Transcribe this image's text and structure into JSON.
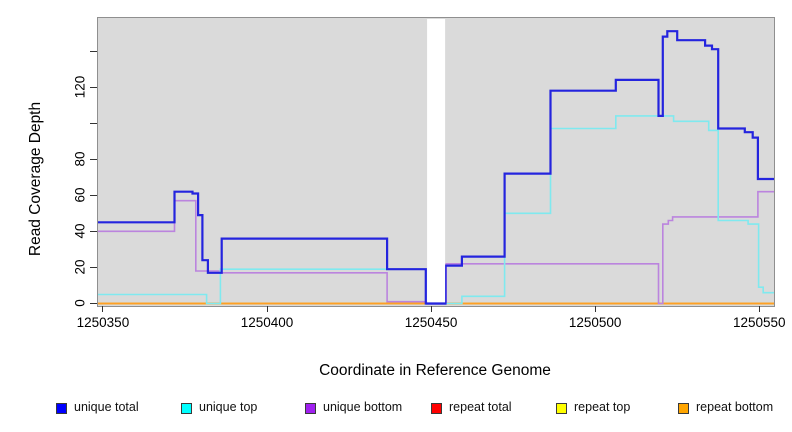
{
  "chart_data": {
    "type": "line",
    "subtype": "step",
    "title": "",
    "xlabel": "Coordinate in Reference Genome",
    "ylabel": "Read Coverage Depth",
    "grid": false,
    "plot_bg": "#DADADA",
    "x_domain": [
      1250348.5,
      1250554.5
    ],
    "y_domain": [
      -1.4,
      158.3
    ],
    "x_ticks": [
      {
        "value": 1250350,
        "label": "1250350"
      },
      {
        "value": 1250400,
        "label": "1250400"
      },
      {
        "value": 1250450,
        "label": "1250450"
      },
      {
        "value": 1250500,
        "label": "1250500"
      },
      {
        "value": 1250550,
        "label": "1250550"
      }
    ],
    "y_ticks": [
      {
        "value": 0,
        "label": "0"
      },
      {
        "value": 20,
        "label": "20"
      },
      {
        "value": 40,
        "label": "40"
      },
      {
        "value": 60,
        "label": "60"
      },
      {
        "value": 80,
        "label": "80"
      },
      {
        "value": 100,
        "label": ""
      },
      {
        "value": 120,
        "label": "120"
      },
      {
        "value": 140,
        "label": ""
      }
    ],
    "gap_band": {
      "x1": 1250448.8,
      "x2": 1250454.3,
      "color": "#FFFFFF",
      "crossing_series": "unique total",
      "crossing_value": 0
    },
    "series": [
      {
        "name": "repeat total",
        "key": "repeat-total",
        "legend_color": "#FF0000",
        "line_color": "#DE2121",
        "width": 1.4,
        "points": [
          [
            1250348.5,
            0
          ]
        ]
      },
      {
        "name": "repeat top",
        "key": "repeat-top",
        "legend_color": "#FFFF00",
        "line_color": "#F0F00A",
        "width": 1.4,
        "points": [
          [
            1250348.5,
            0
          ]
        ]
      },
      {
        "name": "repeat bottom",
        "key": "repeat-bottom",
        "legend_color": "#FFA500",
        "line_color": "#FFA024",
        "width": 1.7,
        "points": [
          [
            1250348.5,
            0
          ]
        ]
      },
      {
        "name": "unique bottom",
        "key": "unique-bottom",
        "legend_color": "#A020F0",
        "line_color": "#BB84DE",
        "width": 1.6,
        "points": [
          [
            1250348.5,
            40
          ],
          [
            1250371.8,
            57
          ],
          [
            1250378.3,
            18
          ],
          [
            1250386.2,
            17
          ],
          [
            1250436.6,
            1
          ],
          [
            1250454.6,
            22
          ],
          [
            1250519.3,
            0
          ],
          [
            1250520.6,
            44
          ],
          [
            1250522.3,
            46
          ],
          [
            1250523.6,
            48
          ],
          [
            1250549.6,
            62
          ]
        ]
      },
      {
        "name": "unique top",
        "key": "unique-top",
        "legend_color": "#00FFFF",
        "line_color": "#7FE9EF",
        "width": 1.6,
        "points": [
          [
            1250348.5,
            5
          ],
          [
            1250381.6,
            0
          ],
          [
            1250385.8,
            19
          ],
          [
            1250448.4,
            0
          ],
          [
            1250459.4,
            4
          ],
          [
            1250472.4,
            50
          ],
          [
            1250486.4,
            97
          ],
          [
            1250506.3,
            104
          ],
          [
            1250523.9,
            101
          ],
          [
            1250534.6,
            96
          ],
          [
            1250537.5,
            46
          ],
          [
            1250546.6,
            44
          ],
          [
            1250549.8,
            9
          ],
          [
            1250551.2,
            6
          ]
        ]
      },
      {
        "name": "unique total",
        "key": "unique-total",
        "legend_color": "#0000FF",
        "line_color": "#2424DE",
        "width": 2.2,
        "points": [
          [
            1250348.5,
            45
          ],
          [
            1250371.8,
            62
          ],
          [
            1250377.3,
            61
          ],
          [
            1250379.0,
            49
          ],
          [
            1250380.3,
            24
          ],
          [
            1250382.0,
            17
          ],
          [
            1250386.2,
            36
          ],
          [
            1250436.6,
            19
          ],
          [
            1250448.4,
            0
          ],
          [
            1250454.4,
            21
          ],
          [
            1250459.4,
            26
          ],
          [
            1250472.4,
            72
          ],
          [
            1250486.4,
            118
          ],
          [
            1250506.3,
            124
          ],
          [
            1250519.3,
            104
          ],
          [
            1250520.6,
            148
          ],
          [
            1250522.0,
            151
          ],
          [
            1250525.0,
            146
          ],
          [
            1250533.5,
            143
          ],
          [
            1250535.6,
            141
          ],
          [
            1250537.5,
            97
          ],
          [
            1250545.6,
            95
          ],
          [
            1250548.0,
            92
          ],
          [
            1250549.6,
            69
          ]
        ]
      }
    ],
    "legend": {
      "order": [
        "unique total",
        "unique top",
        "unique bottom",
        "repeat total",
        "repeat top",
        "repeat bottom"
      ],
      "position": "bottom",
      "x_offsets": [
        56,
        181,
        305,
        431,
        556,
        678
      ]
    }
  }
}
